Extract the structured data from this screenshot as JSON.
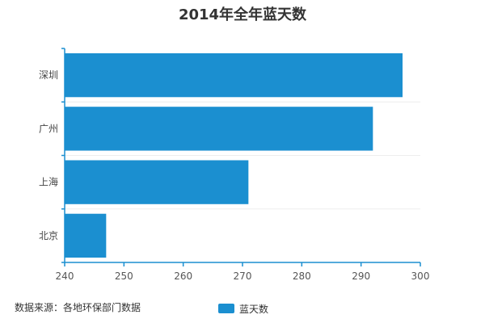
{
  "chart_data": {
    "type": "bar",
    "orientation": "horizontal",
    "title": "2014年全年蓝天数",
    "categories": [
      "深圳",
      "广州",
      "上海",
      "北京"
    ],
    "series": [
      {
        "name": "蓝天数",
        "values": [
          297,
          292,
          271,
          247
        ]
      }
    ],
    "xlim": [
      240,
      300
    ],
    "xticks": [
      240,
      250,
      260,
      270,
      280,
      290,
      300
    ],
    "grid": false,
    "legend": "bottom-center",
    "bar_color": "#1b8fd0",
    "axis_color": "#1b8fd0"
  },
  "footer": {
    "source": "数据来源：各地环保部门数据"
  }
}
